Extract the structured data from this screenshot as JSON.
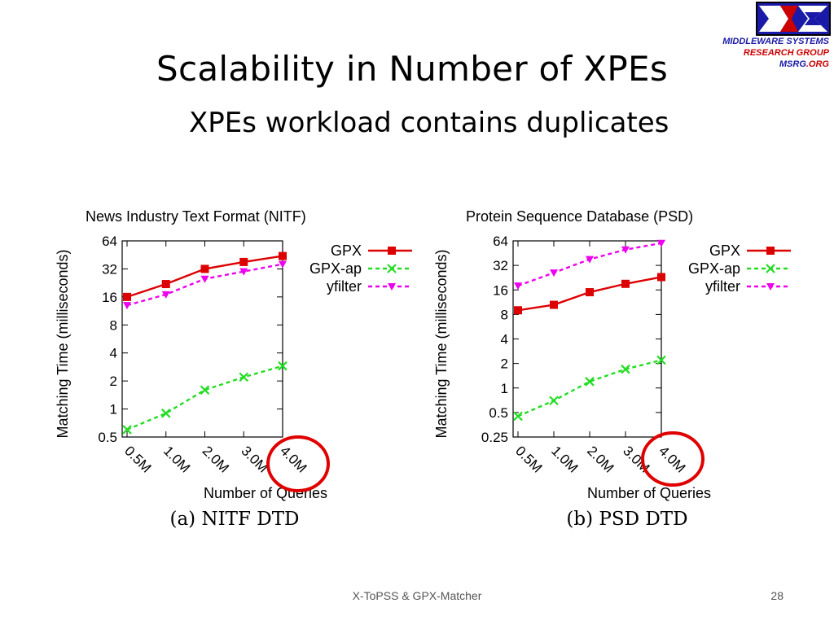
{
  "slide": {
    "title": "Scalability in Number of XPEs",
    "subtitle": "XPEs workload contains duplicates",
    "footer": "X-ToPSS & GPX-Matcher",
    "page_number": "28"
  },
  "logo": {
    "line1": "MIDDLEWARE SYSTEMS",
    "line2": "RESEARCH GROUP",
    "line3_a": "MSRG",
    "line3_b": ".ORG",
    "colors": {
      "blue": "#1a1aa8",
      "red": "#cc0000"
    }
  },
  "highlight_color": "#e00000",
  "chart_data": [
    {
      "type": "line",
      "title": "News Industry Text Format (NITF)",
      "xlabel": "Number of Queries",
      "ylabel": "Matching Time (milliseconds)",
      "caption": "(a) NITF DTD",
      "y_scale": "log2",
      "ylim": [
        0.5,
        64
      ],
      "yticks": [
        "0.5",
        "1",
        "2",
        "4",
        "8",
        "16",
        "32",
        "64"
      ],
      "categories": [
        "0.5M",
        "1.0M",
        "2.0M",
        "3.0M",
        "4.0M"
      ],
      "highlighted_category": "4.0M",
      "legend_position": "right",
      "grid": false,
      "series": [
        {
          "name": "GPX",
          "color": "#dd0000",
          "marker": "square",
          "dashed": false,
          "values": [
            16,
            22,
            32,
            38,
            44
          ]
        },
        {
          "name": "GPX-ap",
          "color": "#22dd22",
          "marker": "x",
          "dashed": true,
          "values": [
            0.6,
            0.9,
            1.6,
            2.2,
            2.9
          ]
        },
        {
          "name": "yfilter",
          "color": "#ee00ee",
          "marker": "triangle-down",
          "dashed": true,
          "values": [
            13,
            17,
            25,
            30,
            36
          ]
        }
      ]
    },
    {
      "type": "line",
      "title": "Protein Sequence Database (PSD)",
      "xlabel": "Number of Queries",
      "ylabel": "Matching Time (milliseconds)",
      "caption": "(b) PSD DTD",
      "y_scale": "log2",
      "ylim": [
        0.25,
        64
      ],
      "yticks": [
        "0.25",
        "0.5",
        "1",
        "2",
        "4",
        "8",
        "16",
        "32",
        "64"
      ],
      "categories": [
        "0.5M",
        "1.0M",
        "2.0M",
        "3.0M",
        "4.0M"
      ],
      "highlighted_category": "4.0M",
      "legend_position": "right",
      "grid": false,
      "series": [
        {
          "name": "GPX",
          "color": "#dd0000",
          "marker": "square",
          "dashed": false,
          "values": [
            9,
            10.5,
            15,
            19,
            23
          ]
        },
        {
          "name": "GPX-ap",
          "color": "#22dd22",
          "marker": "x",
          "dashed": true,
          "values": [
            0.45,
            0.7,
            1.2,
            1.7,
            2.2
          ]
        },
        {
          "name": "yfilter",
          "color": "#ee00ee",
          "marker": "triangle-down",
          "dashed": true,
          "values": [
            18,
            26,
            38,
            50,
            60
          ]
        }
      ]
    }
  ]
}
